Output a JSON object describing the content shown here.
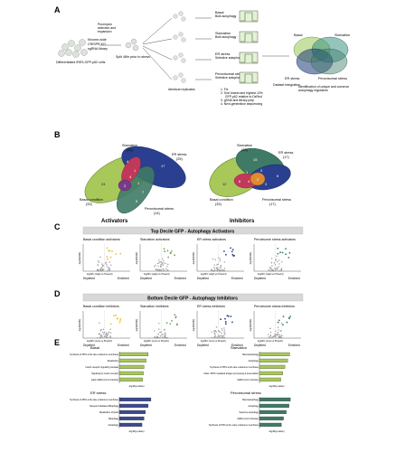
{
  "panel_a": {
    "letter": "A",
    "screen_lines": [
      "Kinome-wide",
      "CRISPR KO",
      "sgRNA library"
    ],
    "cells_label": "Differentiated iRES-GFP-p62 cells",
    "selection_lines": [
      "Puromycin",
      "selection and",
      "expansion"
    ],
    "split_label": "Split 48hr prior to stress",
    "replicates_label": "Identical replicates",
    "conditions": [
      {
        "title": "Basal",
        "sub": "Bulk autophagy"
      },
      {
        "title": "Starvation",
        "sub": "Bulk autophagy"
      },
      {
        "title": "ER stress",
        "sub": "Selective autophagy"
      },
      {
        "title": "Peroxisomal stress",
        "sub": "Selective autophagy"
      }
    ],
    "steps": [
      "1. Fix",
      "2. Sort lowest and highest 10%",
      "GFP-p62 relative to DsRed",
      "3. gDNA and library prep",
      "4. Next-generation sequencing"
    ],
    "integration_label": "Dataset integration",
    "venn_labels": [
      "Basal",
      "Starvation",
      "ER stress",
      "Peroxisomal stress"
    ],
    "venn_caption_lines": [
      "Identification of unique and common",
      "autophagy regulators"
    ]
  },
  "panel_b": {
    "letter": "B",
    "activators": {
      "title": "Activators",
      "labels": [
        {
          "name": "Basal condition",
          "count": "(33)"
        },
        {
          "name": "Starvation",
          "count": "(13)"
        },
        {
          "name": "ER stress",
          "count": "(25)"
        },
        {
          "name": "Peroxisomal stress",
          "count": "(14)"
        }
      ],
      "region_counts": [
        "24",
        "4",
        "17",
        "1",
        "4",
        "2",
        "1",
        "7",
        "5"
      ]
    },
    "inhibitors": {
      "title": "Inhibitors",
      "labels": [
        {
          "name": "Basal condition",
          "count": "(33)"
        },
        {
          "name": "Starvation",
          "count": "(33)"
        },
        {
          "name": "ER stress",
          "count": "(17)"
        },
        {
          "name": "Peroxisomal stress",
          "count": "(17)"
        }
      ],
      "region_counts": [
        "12",
        "15",
        "6",
        "6",
        "4",
        "2",
        "3",
        "1",
        "3"
      ]
    }
  },
  "panel_c": {
    "letter": "C",
    "banner": "Top Decile GFP - Autophagy Activators",
    "plots": [
      "Basal condition activators",
      "Starvation activators",
      "ER stress activators",
      "Peroxisome stress activators"
    ],
    "ylabel": "-log10(FDR)",
    "xlabel": "log2FC (High vs Presort)",
    "left_axis": "Depleted",
    "right_axis": "Enriched"
  },
  "panel_d": {
    "letter": "D",
    "banner": "Bottom Decile GFP - Autophagy Inhibitors",
    "plots": [
      "Basal condition inhibitors",
      "Starvation inhibitors",
      "ER stress inhibitors",
      "Peroxisome stress inhibitors"
    ],
    "ylabel": "-log10(FDR)",
    "xlabel": "log2FC (Low vs Presort)",
    "left_axis": "Depleted",
    "right_axis": "Enriched"
  },
  "panel_e": {
    "letter": "E",
    "xlabel": "-log10(p-value)"
  },
  "chart_data": [
    {
      "type": "bar",
      "title": "Basal",
      "orientation": "horizontal",
      "color": "#a8c85a",
      "categories": [
        "Synthesis of PIPs at the late endosome membrane",
        "Metabolism",
        "Insulin receptor signalling cascade",
        "Signaling by insulin receptor",
        "Early SARS-CoV-2 Infection"
      ],
      "values": [
        4.2,
        3.9,
        3.6,
        3.5,
        3.4
      ],
      "xlabel": "-log10(p-value)"
    },
    {
      "type": "bar",
      "title": "Starvation",
      "orientation": "horizontal",
      "color": "#a8c85a",
      "categories": [
        "Macroautophagy",
        "Autophagy",
        "Synthesis of PIPs at the late endosome membrane",
        "Class I MHC mediated antigen processing & presentation",
        "SARS-CoV-1 Infection"
      ],
      "values": [
        4.4,
        4.1,
        3.7,
        3.4,
        3.1
      ],
      "xlabel": "-log10(p-value)"
    },
    {
      "type": "bar",
      "title": "ER stress",
      "orientation": "horizontal",
      "color": "#3b4a8f",
      "categories": [
        "Synthesis of PIPs at the late endosome membrane",
        "Receptor Mediated Mitophagy",
        "Metabolism of lipids",
        "Mitophagy",
        "Autophagy"
      ],
      "values": [
        4.6,
        4.2,
        3.8,
        3.6,
        3.3
      ],
      "xlabel": "-log10(p-value)"
    },
    {
      "type": "bar",
      "title": "Peroxisomal stress",
      "orientation": "horizontal",
      "color": "#3f7a66",
      "categories": [
        "Macroautophagy",
        "Autophagy",
        "Selective autophagy",
        "SARS-CoV-2 Infection",
        "Synthesis of PIPs at the early endosome membrane"
      ],
      "values": [
        4.5,
        4.3,
        3.9,
        3.5,
        3.2
      ],
      "xlabel": "-log10(p-value)"
    }
  ]
}
